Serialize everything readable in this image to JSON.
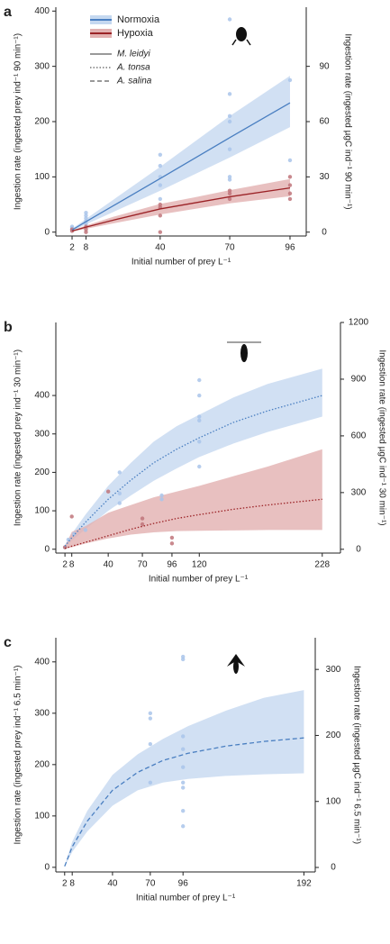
{
  "chart_data": [
    {
      "type": "line",
      "label": "a",
      "xlabel": "Initial number of prey L⁻¹",
      "ylabel": "Ingestion rate (ingested prey ind⁻¹ 90 min⁻¹)",
      "y2label": "Ingestion rate (ingested µgC ind⁻¹ 90 min⁻¹)",
      "xlim": [
        -5,
        103
      ],
      "xticks": [
        2,
        8,
        40,
        70,
        96
      ],
      "ylim": [
        -7,
        407
      ],
      "yticks": [
        0,
        100,
        200,
        300,
        400
      ],
      "y2lim": [
        -2.1,
        122.1
      ],
      "y2ticks": [
        0,
        30,
        60,
        90
      ],
      "legend": [
        {
          "name": "Normoxia",
          "color": "#4a7fc1",
          "fill": "#c5d8f0"
        },
        {
          "name": "Hypoxia",
          "color": "#9b2226",
          "fill": "#e2b0b0"
        }
      ],
      "line_legend": [
        {
          "name": "M. leidyi",
          "linestyle": "solid"
        },
        {
          "name": "A. tonsa",
          "linestyle": "dotted"
        },
        {
          "name": "A. salina",
          "linestyle": "dashed"
        }
      ],
      "series": [
        {
          "color": "#4a7fc1",
          "fill": "#c5d8f0",
          "linestyle": "solid",
          "x": [
            2,
            8,
            40,
            70,
            96
          ],
          "values": [
            4,
            19,
            97,
            171,
            234
          ],
          "lower": [
            2,
            14,
            75,
            135,
            190
          ],
          "upper": [
            6,
            24,
            118,
            210,
            283
          ]
        },
        {
          "color": "#9b2226",
          "fill": "#e2b0b0",
          "linestyle": "solid",
          "x": [
            2,
            8,
            20,
            40,
            55,
            70,
            96
          ],
          "values": [
            2,
            9,
            22,
            42,
            53,
            64,
            80
          ],
          "lower": [
            1,
            6,
            16,
            32,
            42,
            52,
            65
          ],
          "upper": [
            3,
            12,
            28,
            51,
            63,
            76,
            96
          ]
        }
      ],
      "points": [
        {
          "color": "#a9c4ea",
          "x": [
            2,
            2,
            2,
            8,
            8,
            8,
            8,
            8,
            40,
            40,
            40,
            40,
            40,
            70,
            70,
            70,
            70,
            70,
            70,
            70,
            96,
            96
          ],
          "values": [
            5,
            8,
            10,
            15,
            20,
            25,
            30,
            35,
            140,
            120,
            100,
            85,
            60,
            385,
            250,
            210,
            200,
            150,
            100,
            95,
            275,
            130
          ]
        },
        {
          "color": "#c0747a",
          "x": [
            2,
            2,
            8,
            8,
            8,
            40,
            40,
            40,
            40,
            70,
            70,
            70,
            96,
            96,
            96,
            96
          ],
          "values": [
            2,
            5,
            0,
            5,
            10,
            0,
            30,
            50,
            45,
            60,
            70,
            75,
            60,
            70,
            85,
            100
          ]
        }
      ]
    },
    {
      "type": "line",
      "label": "b",
      "xlabel": "Initial number of prey L⁻¹",
      "ylabel": "Ingestion rate (ingested prey ind⁻¹ 30 min⁻¹)",
      "y2label": "Ingestion rate (ingested µgC ind⁻¹ 30 min⁻¹)",
      "xlim": [
        -6,
        244
      ],
      "xticks": [
        2,
        8,
        40,
        70,
        96,
        120,
        228
      ],
      "ylim": [
        -10,
        590
      ],
      "yticks": [
        0,
        100,
        200,
        300,
        400
      ],
      "y2lim": [
        -20,
        1200
      ],
      "y2ticks": [
        0,
        300,
        600,
        900,
        1200
      ],
      "series": [
        {
          "color": "#4a7fc1",
          "fill": "#c5d8f0",
          "linestyle": "dotted",
          "x": [
            2,
            8,
            20,
            40,
            60,
            80,
            100,
            120,
            150,
            180,
            228
          ],
          "values": [
            8,
            30,
            70,
            130,
            180,
            225,
            260,
            290,
            330,
            360,
            400
          ],
          "lower": [
            5,
            22,
            52,
            100,
            140,
            178,
            210,
            240,
            275,
            305,
            345
          ],
          "upper": [
            12,
            40,
            90,
            165,
            225,
            280,
            320,
            350,
            395,
            430,
            470
          ]
        },
        {
          "color": "#9b2226",
          "fill": "#e2b0b0",
          "linestyle": "dotted",
          "x": [
            2,
            8,
            20,
            40,
            60,
            80,
            100,
            120,
            150,
            180,
            228
          ],
          "values": [
            2,
            8,
            18,
            35,
            52,
            67,
            80,
            90,
            104,
            115,
            130
          ],
          "lower": [
            1,
            5,
            15,
            28,
            38,
            44,
            47,
            48,
            49,
            50,
            50
          ],
          "upper": [
            8,
            45,
            60,
            95,
            115,
            135,
            150,
            165,
            190,
            215,
            260
          ]
        }
      ],
      "points": [
        {
          "color": "#a9c4ea",
          "x": [
            2,
            5,
            10,
            20,
            50,
            50,
            50,
            87,
            87,
            120,
            120,
            120,
            120,
            120,
            120
          ],
          "values": [
            5,
            25,
            40,
            50,
            200,
            145,
            120,
            140,
            130,
            440,
            400,
            345,
            335,
            280,
            215
          ]
        },
        {
          "color": "#c0747a",
          "x": [
            2,
            8,
            40,
            70,
            70,
            96,
            96
          ],
          "values": [
            5,
            85,
            150,
            80,
            65,
            30,
            15
          ]
        }
      ]
    },
    {
      "type": "line",
      "label": "c",
      "xlabel": "Initial number of prey L⁻¹",
      "ylabel": "Ingestion rate (ingested prey ind⁻¹ 6.5 min⁻¹)",
      "y2label": "Ingestion rate (ingested µgC ind⁻¹ 6.5 min⁻¹)",
      "xlim": [
        -5,
        201
      ],
      "xticks": [
        2,
        8,
        40,
        70,
        96,
        192
      ],
      "ylim": [
        -9,
        447
      ],
      "yticks": [
        0,
        100,
        200,
        300,
        400
      ],
      "y2lim": [
        -6.8,
        348
      ],
      "y2ticks": [
        0,
        100,
        200,
        300
      ],
      "series": [
        {
          "color": "#4a7fc1",
          "fill": "#c5d8f0",
          "linestyle": "dashed",
          "x": [
            2,
            8,
            20,
            40,
            60,
            80,
            100,
            130,
            160,
            192
          ],
          "values": [
            2,
            40,
            90,
            150,
            185,
            208,
            222,
            236,
            245,
            252
          ],
          "lower": [
            1,
            30,
            70,
            120,
            150,
            165,
            172,
            178,
            181,
            183
          ],
          "upper": [
            3,
            50,
            110,
            180,
            220,
            250,
            275,
            305,
            330,
            345
          ]
        }
      ],
      "points": [
        {
          "color": "#a9c4ea",
          "x": [
            70,
            70,
            70,
            70,
            96,
            96,
            96,
            96,
            96,
            96,
            96,
            96,
            96
          ],
          "values": [
            300,
            290,
            240,
            165,
            410,
            405,
            255,
            230,
            195,
            165,
            155,
            110,
            80
          ]
        }
      ]
    }
  ]
}
